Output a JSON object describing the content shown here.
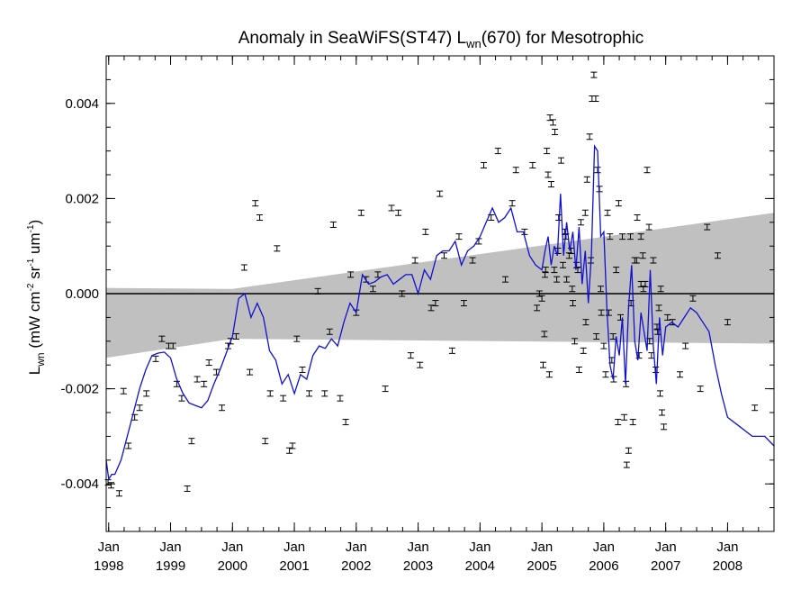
{
  "chart_data": {
    "type": "scatter",
    "title": "Anomaly in SeaWiFS(ST47) L",
    "title_sub": "wn",
    "title_tail": "(670) for Mesotrophic",
    "ylabel_main": "L",
    "ylabel_sub": "wn",
    "ylabel_units": " (mW cm",
    "ylabel_exp1": "-2",
    "ylabel_mid": " sr",
    "ylabel_exp2": "-1",
    "ylabel_mid2": " um",
    "ylabel_exp3": "-1",
    "ylabel_close": ")",
    "xlim": [
      1997.96,
      2008.75
    ],
    "ylim": [
      -0.005,
      0.005
    ],
    "yticks": [
      -0.004,
      -0.002,
      0.0,
      0.002,
      0.004
    ],
    "ytick_labels": [
      "-0.004",
      "-0.002",
      "0.000",
      "0.002",
      "0.004"
    ],
    "xticks": [
      1998,
      1999,
      2000,
      2001,
      2002,
      2003,
      2004,
      2005,
      2006,
      2007,
      2008
    ],
    "xtick_month": "Jan",
    "xtick_years": [
      "1998",
      "1999",
      "2000",
      "2001",
      "2002",
      "2003",
      "2004",
      "2005",
      "2006",
      "2007",
      "2008"
    ],
    "zero_line": 0.0,
    "colors": {
      "line": "#1010d0",
      "band": "#c0c0c0",
      "points": "#000000"
    },
    "band": {
      "x": [
        1997.96,
        2000.0,
        2008.75
      ],
      "upper": [
        0.00012,
        0.0001,
        0.0017
      ],
      "lower": [
        -0.00135,
        -0.00095,
        -0.00105
      ]
    },
    "series": [
      {
        "type": "line",
        "x": [
          1997.96,
          1998.0,
          1998.05,
          1998.1,
          1998.2,
          1998.3,
          1998.4,
          1998.5,
          1998.6,
          1998.7,
          1998.8,
          1998.9,
          1999.0,
          1999.1,
          1999.2,
          1999.3,
          1999.4,
          1999.5,
          1999.6,
          1999.7,
          1999.8,
          1999.9,
          2000.0,
          2000.1,
          2000.2,
          2000.3,
          2000.4,
          2000.5,
          2000.6,
          2000.7,
          2000.8,
          2000.9,
          2001.0,
          2001.1,
          2001.2,
          2001.3,
          2001.4,
          2001.5,
          2001.6,
          2001.7,
          2001.8,
          2001.9,
          2002.0,
          2002.1,
          2002.2,
          2002.3,
          2002.4,
          2002.5,
          2002.6,
          2002.7,
          2002.8,
          2002.9,
          2003.0,
          2003.1,
          2003.2,
          2003.3,
          2003.4,
          2003.5,
          2003.6,
          2003.7,
          2003.8,
          2003.9,
          2004.0,
          2004.1,
          2004.2,
          2004.3,
          2004.4,
          2004.5,
          2004.6,
          2004.7,
          2004.8,
          2004.9,
          2005.0,
          2005.05,
          2005.1,
          2005.15,
          2005.2,
          2005.25,
          2005.3,
          2005.35,
          2005.4,
          2005.45,
          2005.5,
          2005.55,
          2005.6,
          2005.65,
          2005.7,
          2005.75,
          2005.8,
          2005.85,
          2005.9,
          2005.95,
          2006.0,
          2006.05,
          2006.1,
          2006.15,
          2006.2,
          2006.25,
          2006.3,
          2006.35,
          2006.4,
          2006.45,
          2006.5,
          2006.55,
          2006.6,
          2006.65,
          2006.7,
          2006.75,
          2006.8,
          2006.85,
          2006.9,
          2006.95,
          2007.0,
          2007.1,
          2007.2,
          2007.3,
          2007.4,
          2007.5,
          2007.6,
          2007.7,
          2007.8,
          2007.9,
          2008.0,
          2008.2,
          2008.4,
          2008.6,
          2008.75
        ],
        "y": [
          -0.0035,
          -0.0039,
          -0.0038,
          -0.0038,
          -0.0035,
          -0.003,
          -0.0025,
          -0.002,
          -0.0016,
          -0.0013,
          -0.00125,
          -0.00123,
          -0.00135,
          -0.0018,
          -0.0021,
          -0.0023,
          -0.00235,
          -0.0024,
          -0.00225,
          -0.0019,
          -0.0016,
          -0.00125,
          -0.0009,
          -0.0001,
          0.0,
          -0.0005,
          -0.0002,
          -0.0005,
          -0.0012,
          -0.0014,
          -0.0019,
          -0.0017,
          -0.0021,
          -0.0017,
          -0.0018,
          -0.0013,
          -0.0011,
          -0.00115,
          -0.00095,
          -0.0011,
          -0.0006,
          -0.0002,
          -0.0004,
          0.0004,
          0.0002,
          0.00025,
          0.00035,
          0.0004,
          0.0002,
          0.0003,
          0.0004,
          0.0004,
          0.0,
          0.0005,
          0.0003,
          0.0008,
          0.0009,
          0.0009,
          0.0011,
          0.0006,
          0.0009,
          0.001,
          0.0012,
          0.0015,
          0.0018,
          0.0015,
          0.0016,
          0.0018,
          0.0013,
          0.0013,
          0.0008,
          0.0006,
          0.0005,
          0.0009,
          0.0012,
          0.0006,
          0.001,
          0.0008,
          0.0021,
          0.0008,
          0.0015,
          0.0009,
          0.0013,
          0.0005,
          0.0014,
          0.0002,
          0.0009,
          -0.0002,
          0.0008,
          0.0031,
          0.003,
          0.0012,
          0.0013,
          -0.0003,
          -0.0015,
          -0.0018,
          -0.0009,
          -0.0013,
          -0.0005,
          -0.0019,
          -0.0003,
          0.0006,
          -0.001,
          -0.0014,
          -0.0004,
          -0.0008,
          -0.0012,
          0.0005,
          -0.0011,
          -0.0019,
          -0.0005,
          -0.0013,
          -0.0007,
          -0.0006,
          -0.0007,
          -0.0005,
          -0.0003,
          -0.0004,
          -0.0006,
          -0.0008,
          -0.0015,
          -0.0021,
          -0.0026,
          -0.0028,
          -0.003,
          -0.003,
          -0.0032
        ]
      }
    ],
    "points": {
      "x": [
        1997.99,
        1998.04,
        1998.17,
        1998.24,
        1998.32,
        1998.42,
        1998.5,
        1998.61,
        1998.76,
        1998.86,
        1998.97,
        1999.04,
        1999.1,
        1999.18,
        1999.27,
        1999.34,
        1999.43,
        1999.54,
        1999.62,
        1999.74,
        1999.83,
        1999.93,
        1999.97,
        2000.06,
        2000.19,
        2000.28,
        2000.37,
        2000.44,
        2000.53,
        2000.61,
        2000.72,
        2000.82,
        2000.92,
        2000.97,
        2001.04,
        2001.13,
        2001.24,
        2001.38,
        2001.49,
        2001.57,
        2001.63,
        2001.74,
        2001.83,
        2001.91,
        2002.0,
        2002.08,
        2002.16,
        2002.27,
        2002.35,
        2002.47,
        2002.57,
        2002.68,
        2002.74,
        2002.88,
        2002.95,
        2003.03,
        2003.12,
        2003.21,
        2003.28,
        2003.35,
        2003.42,
        2003.55,
        2003.66,
        2003.74,
        2003.88,
        2003.98,
        2004.06,
        2004.18,
        2004.29,
        2004.41,
        2004.52,
        2004.58,
        2004.72,
        2004.85,
        2004.92,
        2004.96,
        2005.0,
        2005.04,
        2005.06,
        2005.08,
        2005.1,
        2005.13,
        2005.15,
        2005.18,
        2005.21,
        2005.24,
        2005.27,
        2005.31,
        2005.34,
        2005.37,
        2005.4,
        2005.44,
        2005.47,
        2005.5,
        2005.53,
        2005.56,
        2005.6,
        2005.63,
        2005.67,
        2005.7,
        2005.73,
        2005.77,
        2005.81,
        2005.84,
        2005.87,
        2005.9,
        2005.93,
        2005.96,
        2006.0,
        2006.03,
        2006.06,
        2006.1,
        2006.13,
        2006.16,
        2006.2,
        2006.23,
        2006.27,
        2006.3,
        2006.33,
        2006.37,
        2006.4,
        2006.43,
        2006.47,
        2006.5,
        2006.54,
        2006.57,
        2006.6,
        2006.63,
        2006.67,
        2006.7,
        2006.73,
        2006.77,
        2006.8,
        2006.84,
        2006.87,
        2006.91,
        2006.94,
        2006.97,
        2007.03,
        2007.11,
        2007.23,
        2007.32,
        2007.44,
        2007.56,
        2007.67,
        2007.84,
        2008.0,
        2008.44,
        2005.05,
        2005.12,
        2005.26,
        2005.39,
        2005.58,
        2005.71,
        2005.88,
        2005.95,
        2006.08,
        2006.24,
        2006.36,
        2006.53,
        2006.64,
        2006.74,
        2006.86,
        2006.92,
        2005.02,
        2005.2,
        2005.49,
        2005.79,
        2006.15,
        2006.44,
        2006.6,
        2006.89
      ],
      "y": [
        -0.00397,
        -0.00403,
        -0.0042,
        -0.00205,
        -0.0032,
        -0.0026,
        -0.0024,
        -0.0021,
        -0.00137,
        -0.00095,
        -0.0011,
        -0.0011,
        -0.0019,
        -0.0022,
        -0.0041,
        -0.0031,
        -0.0018,
        -0.0019,
        -0.00145,
        -0.00165,
        -0.0024,
        -0.0011,
        -0.001,
        -0.0009,
        0.00055,
        -0.00165,
        0.0019,
        0.0016,
        -0.0031,
        -0.0021,
        0.00095,
        -0.0022,
        -0.0033,
        -0.0032,
        -0.00095,
        -0.0016,
        -0.0021,
        5e-05,
        -0.0021,
        -0.0008,
        0.00145,
        -0.0022,
        -0.0027,
        0.0004,
        -0.0004,
        0.0017,
        0.0003,
        0.0001,
        0.0004,
        -0.002,
        0.0018,
        0.0017,
        0.0,
        -0.0013,
        0.0007,
        -0.0015,
        0.0013,
        -0.0003,
        -0.0002,
        0.0021,
        0.0008,
        -0.0012,
        0.0012,
        -0.0002,
        0.0007,
        0.0011,
        0.0027,
        0.0016,
        0.003,
        0.0003,
        0.0019,
        0.0026,
        0.0013,
        0.0027,
        -0.0003,
        0.0,
        -0.0001,
        -0.00085,
        0.0005,
        0.003,
        0.0025,
        0.0037,
        0.0023,
        0.0036,
        0.0034,
        0.0003,
        0.0016,
        0.0028,
        0.0006,
        0.0013,
        0.0003,
        0.0008,
        0.0009,
        -0.0002,
        -0.001,
        0.0006,
        -0.0016,
        0.0015,
        -0.0012,
        0.0017,
        0.0024,
        0.0033,
        0.0041,
        0.0046,
        0.0041,
        0.0026,
        0.0022,
        -0.0004,
        -0.0011,
        -0.0017,
        0.0017,
        0.0012,
        -0.0014,
        -0.0018,
        0.0005,
        -0.0027,
        -0.0005,
        0.0012,
        -0.0026,
        -0.0036,
        -0.0033,
        0.0012,
        -0.0027,
        0.0007,
        0.0016,
        -0.0013,
        0.0012,
        0.0008,
        0.0002,
        0.0026,
        0.0014,
        -0.0013,
        0.0007,
        -0.0016,
        -0.0008,
        -0.0021,
        -0.0025,
        -0.0028,
        -0.0005,
        -0.0006,
        -0.0017,
        -0.0011,
        -0.0001,
        -0.002,
        0.0014,
        0.0008,
        -0.0006,
        -0.0024,
        0.0004,
        -0.0017,
        0.0009,
        0.0012,
        0.0005,
        -0.0006,
        -0.0009,
        0.0001,
        -0.0004,
        0.0019,
        -0.0019,
        0.0007,
        0.0001,
        -0.001,
        -0.0007,
        0.0001,
        -0.0015,
        0.0005,
        0.0001,
        0.0007,
        -0.0009,
        -0.0002,
        0.0002,
        -0.0003
      ]
    }
  }
}
